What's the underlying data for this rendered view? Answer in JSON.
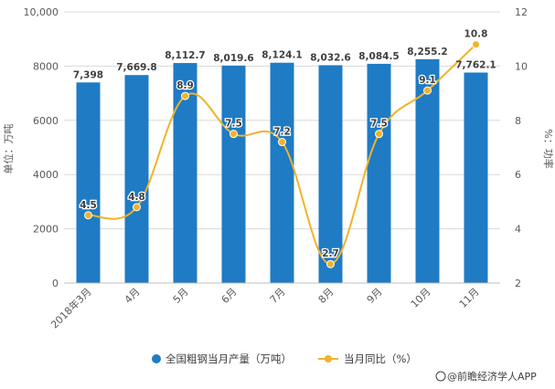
{
  "chart_data": {
    "type": "bar",
    "categories": [
      "2018年3月",
      "4月",
      "5月",
      "6月",
      "7月",
      "8月",
      "9月",
      "10月",
      "11月"
    ],
    "series": [
      {
        "name": "全国粗钢当月产量（万吨）",
        "type": "bar",
        "axis": "left",
        "color": "#1f7bc4",
        "values": [
          7398,
          7669.8,
          8112.7,
          8019.6,
          8124.1,
          8032.6,
          8084.5,
          8255.2,
          7762.1
        ],
        "labels": [
          "7,398",
          "7,669.8",
          "8,112.7",
          "8,019.6",
          "8,124.1",
          "8,032.6",
          "8,084.5",
          "8,255.2",
          "7,762.1"
        ]
      },
      {
        "name": "当月同比（%）",
        "type": "line",
        "axis": "right",
        "color": "#f0b32a",
        "values": [
          4.5,
          4.8,
          8.9,
          7.5,
          7.2,
          2.7,
          7.5,
          9.1,
          10.8
        ],
        "labels": [
          "4.5",
          "4.8",
          "8.9",
          "7.5",
          "7.2",
          "2.7",
          "7.5",
          "9.1",
          "10.8"
        ]
      }
    ],
    "ylabel": "单位：万吨",
    "y2label": "%：功率",
    "ylim": [
      0,
      10000
    ],
    "y2lim": [
      2,
      12
    ],
    "yticks": [
      0,
      2000,
      4000,
      6000,
      8000,
      10000
    ],
    "yticklabels": [
      "0",
      "2000",
      "4000",
      "6000",
      "8000",
      "10,000"
    ],
    "y2ticks": [
      2,
      4,
      6,
      8,
      10,
      12
    ],
    "y2ticklabels": [
      "2",
      "4",
      "6",
      "8",
      "10",
      "12"
    ],
    "grid": true,
    "legend_position": "bottom"
  },
  "source": "@前瞻经济学人APP"
}
